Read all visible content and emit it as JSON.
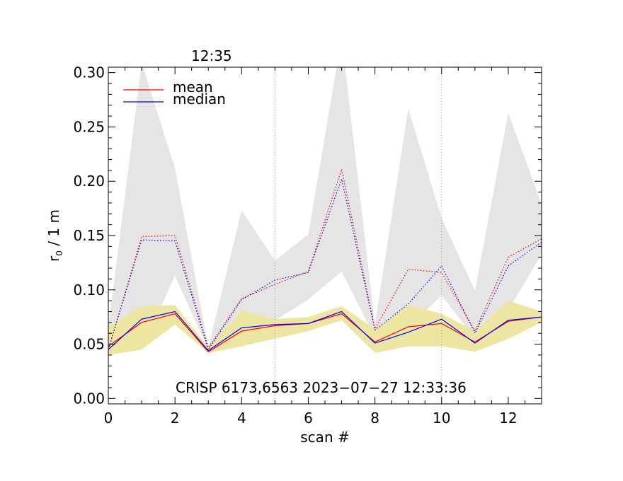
{
  "chart_data": {
    "type": "line",
    "title": "",
    "time_label": "12:35",
    "annotation": "CRISP 6173,6563 2023−07−27 12:33:36",
    "xlabel": "scan #",
    "ylabel_main": "r",
    "ylabel_sub": "0",
    "ylabel_rest": " / 1 m",
    "xlim": [
      0,
      13
    ],
    "ylim": [
      -0.005,
      0.305
    ],
    "x_ticks": [
      0,
      2,
      4,
      6,
      8,
      10,
      12
    ],
    "x_tick_labels": [
      "0",
      "2",
      "4",
      "6",
      "8",
      "10",
      "12"
    ],
    "y_ticks": [
      0.0,
      0.05,
      0.1,
      0.15,
      0.2,
      0.25,
      0.3
    ],
    "y_tick_labels": [
      "0.00",
      "0.05",
      "0.10",
      "0.15",
      "0.20",
      "0.25",
      "0.30"
    ],
    "vertical_dotted_lines_x": [
      5,
      10
    ],
    "legend": {
      "placement": "top-left",
      "entries": [
        {
          "name": "mean",
          "color": "#ff0000"
        },
        {
          "name": "median",
          "color": "#0000ff"
        }
      ]
    },
    "x": [
      0,
      1,
      2,
      3,
      4,
      5,
      6,
      7,
      8,
      9,
      10,
      11,
      12,
      13
    ],
    "bands": [
      {
        "name": "upper-range",
        "color": "#e5e5e5",
        "lower": [
          0.045,
          0.045,
          0.113,
          0.045,
          0.068,
          0.072,
          0.091,
          0.117,
          0.056,
          0.065,
          0.095,
          0.055,
          0.081,
          0.133
        ],
        "upper": [
          0.065,
          0.309,
          0.212,
          0.047,
          0.173,
          0.127,
          0.151,
          0.332,
          0.068,
          0.267,
          0.166,
          0.099,
          0.263,
          0.179
        ]
      },
      {
        "name": "lower-range",
        "color": "#ede6a3",
        "lower": [
          0.04,
          0.045,
          0.068,
          0.042,
          0.048,
          0.055,
          0.062,
          0.072,
          0.042,
          0.048,
          0.048,
          0.043,
          0.055,
          0.07
        ],
        "upper": [
          0.066,
          0.085,
          0.086,
          0.047,
          0.081,
          0.073,
          0.075,
          0.085,
          0.064,
          0.086,
          0.078,
          0.062,
          0.09,
          0.08
        ]
      }
    ],
    "series": [
      {
        "name": "mean",
        "color": "#ff0000",
        "dash": "dotted",
        "values": [
          0.045,
          0.149,
          0.15,
          0.047,
          0.092,
          0.105,
          0.117,
          0.211,
          0.064,
          0.119,
          0.116,
          0.062,
          0.13,
          0.147
        ]
      },
      {
        "name": "median",
        "color": "#0000ff",
        "dash": "dotted",
        "values": [
          0.045,
          0.146,
          0.145,
          0.045,
          0.091,
          0.109,
          0.116,
          0.202,
          0.063,
          0.087,
          0.122,
          0.06,
          0.122,
          0.144
        ]
      },
      {
        "name": "mean",
        "color": "#ff0000",
        "dash": "solid",
        "values": [
          0.048,
          0.07,
          0.078,
          0.043,
          0.062,
          0.067,
          0.069,
          0.078,
          0.052,
          0.066,
          0.069,
          0.052,
          0.071,
          0.075
        ]
      },
      {
        "name": "median",
        "color": "#0000ff",
        "dash": "solid",
        "values": [
          0.045,
          0.073,
          0.08,
          0.044,
          0.065,
          0.068,
          0.069,
          0.08,
          0.051,
          0.061,
          0.073,
          0.051,
          0.072,
          0.075
        ]
      }
    ]
  }
}
